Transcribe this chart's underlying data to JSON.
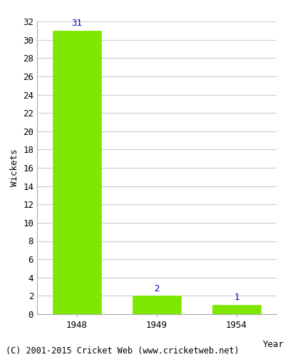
{
  "categories": [
    "1948",
    "1949",
    "1954"
  ],
  "values": [
    31,
    2,
    1
  ],
  "bar_color": "#7FE800",
  "bar_label_color": "#0000AA",
  "xlabel": "Year",
  "ylabel": "Wickets",
  "ylim": [
    0,
    32
  ],
  "yticks": [
    0,
    2,
    4,
    6,
    8,
    10,
    12,
    14,
    16,
    18,
    20,
    22,
    24,
    26,
    28,
    30,
    32
  ],
  "grid_color": "#cccccc",
  "background_color": "#ffffff",
  "border_color": "#aaaaaa",
  "footnote": "(C) 2001-2015 Cricket Web (www.cricketweb.net)",
  "bar_label_fontsize": 9,
  "axis_label_fontsize": 9,
  "tick_fontsize": 9,
  "footnote_fontsize": 8.5
}
